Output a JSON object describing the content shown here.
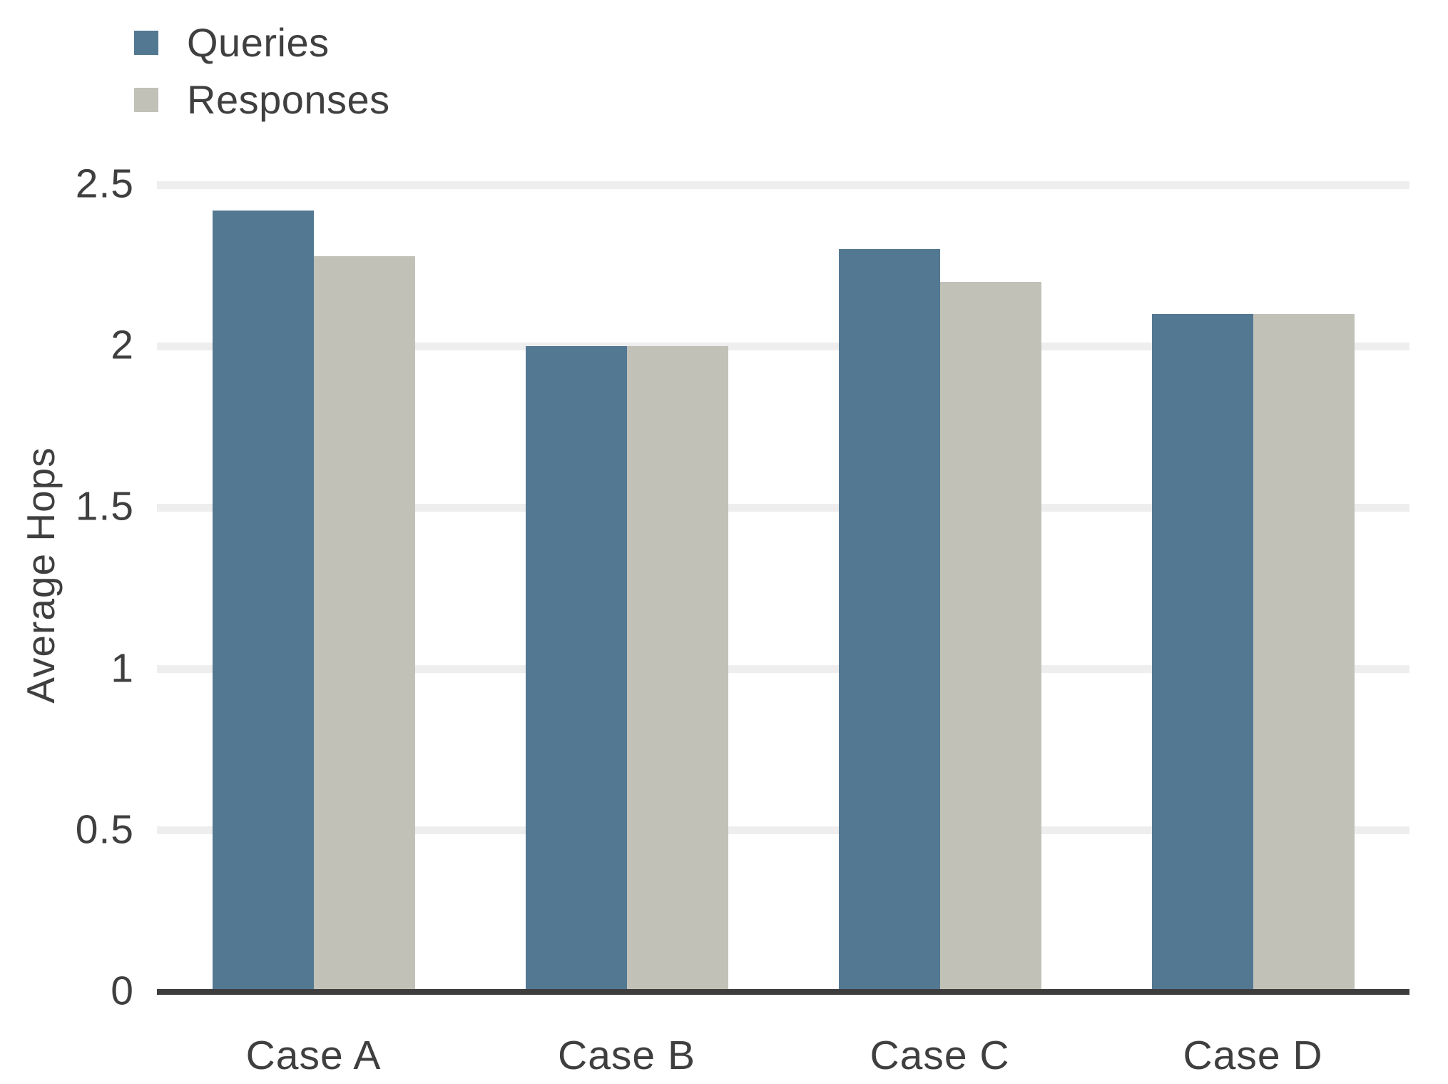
{
  "chart_data": {
    "type": "bar",
    "categories": [
      "Case A",
      "Case B",
      "Case C",
      "Case D"
    ],
    "series": [
      {
        "name": "Queries",
        "color": "#537892",
        "values": [
          2.42,
          2.0,
          2.3,
          2.1
        ]
      },
      {
        "name": "Responses",
        "color": "#c2c1b8",
        "values": [
          2.28,
          2.0,
          2.2,
          2.1
        ]
      }
    ],
    "title": "",
    "xlabel": "",
    "ylabel": "Average Hops",
    "ylim": [
      0,
      2.5
    ],
    "yticks": [
      0,
      0.5,
      1,
      1.5,
      2,
      2.5
    ],
    "grid": true,
    "legend_position": "top-left"
  },
  "colors": {
    "queries_bar": "#537892",
    "responses_bar": "#c2c1b8",
    "gridline": "#eeeeee",
    "axis_line": "#3d3d3d",
    "text": "#3f3f3f",
    "background": "#ffffff"
  }
}
